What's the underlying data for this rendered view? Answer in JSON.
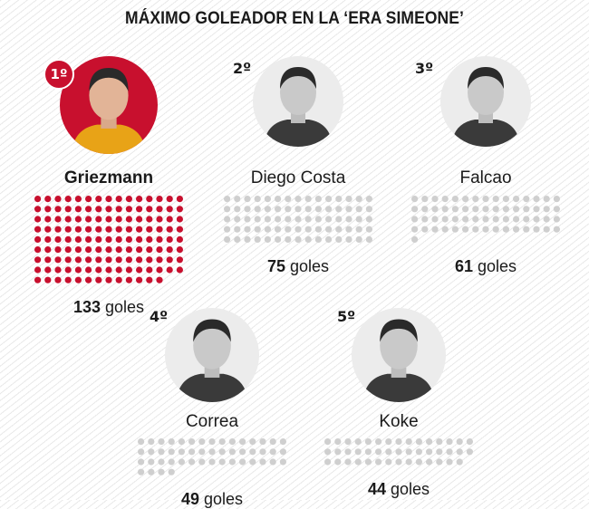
{
  "title": "MÁXIMO GOLEADOR EN LA ‘ERA SIMEONE’",
  "colors": {
    "highlight": "#c8102e",
    "dot_default": "#cfcfcf",
    "text": "#1a1a1a"
  },
  "goals_unit": "goles",
  "players": [
    {
      "rank": "1º",
      "name": "Griezmann",
      "goals": 133
    },
    {
      "rank": "2º",
      "name": "Diego Costa",
      "goals": 75
    },
    {
      "rank": "3º",
      "name": "Falcao",
      "goals": 61
    },
    {
      "rank": "4º",
      "name": "Correa",
      "goals": 49
    },
    {
      "rank": "5º",
      "name": "Koke",
      "goals": 44
    }
  ],
  "chart_data": {
    "type": "bar",
    "title": "MÁXIMO GOLEADOR EN LA ‘ERA SIMEONE’",
    "categories": [
      "Griezmann",
      "Diego Costa",
      "Falcao",
      "Correa",
      "Koke"
    ],
    "values": [
      133,
      75,
      61,
      49,
      44
    ]
  }
}
